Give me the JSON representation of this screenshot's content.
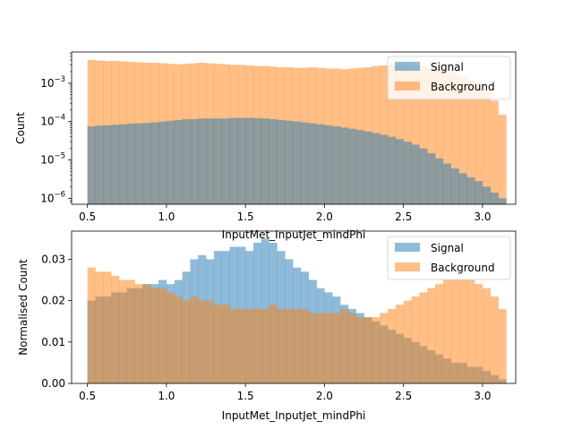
{
  "colors": {
    "signal": "#1f77b4",
    "background": "#ff7f0e",
    "axis": "#000000"
  },
  "chart_data": [
    {
      "type": "histogram",
      "title": "",
      "xlabel": "InputMet_InputJet_mindPhi",
      "ylabel": "Count",
      "yscale": "log",
      "xlim": [
        0.4,
        3.21
      ],
      "ylim": [
        7e-07,
        0.0065
      ],
      "xticks": [
        {
          "value": 0.5,
          "label": "0.5"
        },
        {
          "value": 1.0,
          "label": "1.0"
        },
        {
          "value": 1.5,
          "label": "1.5"
        },
        {
          "value": 2.0,
          "label": "2.0"
        },
        {
          "value": 2.5,
          "label": "2.5"
        },
        {
          "value": 3.0,
          "label": "3.0"
        }
      ],
      "yticks": [
        {
          "value": 1e-06,
          "base": "10",
          "exp": "−6"
        },
        {
          "value": 1e-05,
          "base": "10",
          "exp": "−5"
        },
        {
          "value": 0.0001,
          "base": "10",
          "exp": "−4"
        },
        {
          "value": 0.001,
          "base": "10",
          "exp": "−3"
        }
      ],
      "bin_start": 0.5,
      "bin_width": 0.05,
      "legend": {
        "position": "top-right",
        "entries": [
          "Signal",
          "Background"
        ]
      },
      "series": [
        {
          "name": "Background",
          "color": "#ff7f0e",
          "values": [
            0.004,
            0.0039,
            0.0038,
            0.0038,
            0.0037,
            0.0036,
            0.0035,
            0.0034,
            0.0034,
            0.0033,
            0.0032,
            0.0031,
            0.0032,
            0.0033,
            0.0034,
            0.0033,
            0.0032,
            0.0031,
            0.003,
            0.003,
            0.0029,
            0.0028,
            0.0028,
            0.0027,
            0.0026,
            0.0026,
            0.0025,
            0.0025,
            0.0026,
            0.0025,
            0.0024,
            0.0024,
            0.0023,
            0.0024,
            0.0025,
            0.0026,
            0.0028,
            0.0029,
            0.003,
            0.0031,
            0.003,
            0.0029,
            0.0028,
            0.0026,
            0.0024,
            0.0021,
            0.0018,
            0.0015,
            0.0012,
            0.0009,
            0.0006,
            0.00035,
            0.00015
          ]
        },
        {
          "name": "Signal",
          "color": "#1f77b4",
          "values": [
            7.5e-05,
            7.8e-05,
            8e-05,
            8.2e-05,
            8.5e-05,
            8.8e-05,
            9e-05,
            9.2e-05,
            9.5e-05,
            0.0001,
            0.000105,
            0.00011,
            0.000115,
            0.000115,
            0.00012,
            0.00012,
            0.00012,
            0.00012,
            0.000125,
            0.000125,
            0.000125,
            0.000122,
            0.00012,
            0.000115,
            0.00011,
            0.000105,
            0.0001,
            9.5e-05,
            9e-05,
            8.5e-05,
            8e-05,
            7.5e-05,
            7e-05,
            6.5e-05,
            6e-05,
            5.5e-05,
            5e-05,
            4.5e-05,
            4e-05,
            3.5e-05,
            3e-05,
            2.5e-05,
            2e-05,
            1.5e-05,
            1.1e-05,
            8e-06,
            6e-06,
            4.5e-06,
            3.5e-06,
            2.8e-06,
            2e-06,
            1.4e-06,
            1e-06
          ]
        }
      ]
    },
    {
      "type": "histogram",
      "title": "",
      "xlabel": "InputMet_InputJet_mindPhi",
      "ylabel": "Normalised Count",
      "yscale": "linear",
      "xlim": [
        0.4,
        3.21
      ],
      "ylim": [
        0,
        0.0368
      ],
      "xticks": [
        {
          "value": 0.5,
          "label": "0.5"
        },
        {
          "value": 1.0,
          "label": "1.0"
        },
        {
          "value": 1.5,
          "label": "1.5"
        },
        {
          "value": 2.0,
          "label": "2.0"
        },
        {
          "value": 2.5,
          "label": "2.5"
        },
        {
          "value": 3.0,
          "label": "3.0"
        }
      ],
      "yticks": [
        {
          "value": 0.0,
          "label": "0.00"
        },
        {
          "value": 0.01,
          "label": "0.01"
        },
        {
          "value": 0.02,
          "label": "0.02"
        },
        {
          "value": 0.03,
          "label": "0.03"
        }
      ],
      "bin_start": 0.5,
      "bin_width": 0.05,
      "overlap_color": "#c49d7a",
      "legend": {
        "position": "top-right",
        "entries": [
          "Signal",
          "Background"
        ]
      },
      "series": [
        {
          "name": "Signal",
          "color": "#1f77b4",
          "values": [
            0.02,
            0.021,
            0.021,
            0.022,
            0.022,
            0.023,
            0.023,
            0.024,
            0.024,
            0.025,
            0.024,
            0.025,
            0.027,
            0.03,
            0.031,
            0.03,
            0.032,
            0.032,
            0.033,
            0.033,
            0.032,
            0.034,
            0.035,
            0.034,
            0.032,
            0.03,
            0.028,
            0.027,
            0.025,
            0.023,
            0.022,
            0.021,
            0.019,
            0.018,
            0.017,
            0.016,
            0.015,
            0.014,
            0.013,
            0.012,
            0.011,
            0.01,
            0.009,
            0.008,
            0.007,
            0.006,
            0.005,
            0.005,
            0.004,
            0.004,
            0.003,
            0.002,
            0.001
          ]
        },
        {
          "name": "Background",
          "color": "#ff7f0e",
          "values": [
            0.028,
            0.027,
            0.027,
            0.026,
            0.025,
            0.025,
            0.024,
            0.024,
            0.023,
            0.023,
            0.022,
            0.021,
            0.02,
            0.021,
            0.02,
            0.02,
            0.019,
            0.019,
            0.018,
            0.018,
            0.018,
            0.018,
            0.018,
            0.019,
            0.018,
            0.018,
            0.018,
            0.018,
            0.017,
            0.017,
            0.017,
            0.017,
            0.018,
            0.017,
            0.016,
            0.016,
            0.016,
            0.017,
            0.018,
            0.019,
            0.02,
            0.021,
            0.022,
            0.023,
            0.024,
            0.025,
            0.025,
            0.025,
            0.025,
            0.024,
            0.023,
            0.021,
            0.018
          ]
        }
      ]
    }
  ]
}
